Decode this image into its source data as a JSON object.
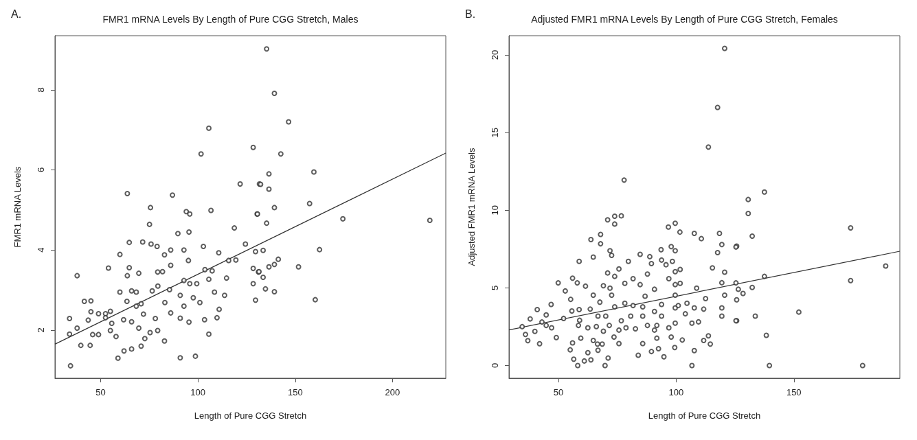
{
  "chart_data": [
    {
      "type": "scatter",
      "title": "FMR1 mRNA Levels By Length of Pure CGG Stretch, Males",
      "xlabel": "Length of Pure CGG Stretch",
      "ylabel": "FMR1 mRNA Levels",
      "annotations": [
        "A."
      ],
      "grid": false,
      "xlim": [
        26.5,
        227.4
      ],
      "ylim": [
        0.8,
        9.35
      ],
      "xticks": [
        50,
        100,
        150,
        200
      ],
      "yticks": [
        2,
        4,
        6,
        8
      ],
      "series": [
        {
          "color": "#333333",
          "marker": "circle",
          "x": [
            34.5,
            34.0,
            34.0,
            37.9,
            37.9,
            39.8,
            44.6,
            41.6,
            45.0,
            45.0,
            43.6,
            45.9,
            48.9,
            48.9,
            52.5,
            52.5,
            55.0,
            55.7,
            55.0,
            57.9,
            54.0,
            59.9,
            58.9,
            62.0,
            65.9,
            70.8,
            61.8,
            63.7,
            64.7,
            64.7,
            63.7,
            59.9,
            63.5,
            65.9,
            68.3,
            69.6,
            68.3,
            65.9,
            69.6,
            70.8,
            72.0,
            72.7,
            71.6,
            75.1,
            75.6,
            75.9,
            79.0,
            76.5,
            79.3,
            79.4,
            78.1,
            75.4,
            79.3,
            82.8,
            82.8,
            86.0,
            86.9,
            81.8,
            86.0,
            85.4,
            83.0,
            86.0,
            89.7,
            90.9,
            90.9,
            90.9,
            92.8,
            92.8,
            92.8,
            95.4,
            94.0,
            95.8,
            95.1,
            95.8,
            95.4,
            98.7,
            97.6,
            99.4,
            101.0,
            101.6,
            102.8,
            103.6,
            103.4,
            105.6,
            105.6,
            105.6,
            106.7,
            107.3,
            108.5,
            109.8,
            110.7,
            110.9,
            113.7,
            114.7,
            115.8,
            118.7,
            119.5,
            121.7,
            124.4,
            128.4,
            129.6,
            128.4,
            128.4,
            129.6,
            130.4,
            131.6,
            131.1,
            135.3,
            139.3,
            146.6,
            142.6,
            136.5,
            132.2,
            136.5,
            159.6,
            130.6,
            139.3,
            135.3,
            157.4,
            174.5,
            219.2,
            133.5,
            162.5,
            141.3,
            139.3,
            136.5,
            131.4,
            133.5,
            151.7,
            134.7,
            139.3,
            160.3
          ],
          "values": [
            1.11,
            2.29,
            1.9,
            2.05,
            3.36,
            1.62,
            1.62,
            2.72,
            2.73,
            2.46,
            2.25,
            1.89,
            1.89,
            2.41,
            2.41,
            2.31,
            2.47,
            2.17,
            1.99,
            1.84,
            3.55,
            3.89,
            1.3,
            1.48,
            1.53,
            1.6,
            2.26,
            3.36,
            3.56,
            4.19,
            5.41,
            2.95,
            2.72,
            2.98,
            2.95,
            3.42,
            2.6,
            2.21,
            2.05,
            2.66,
            2.4,
            1.79,
            4.2,
            4.64,
            5.06,
            4.15,
            4.09,
            2.98,
            3.45,
            3.1,
            2.29,
            1.94,
            1.99,
            1.73,
            3.88,
            4.0,
            5.37,
            3.46,
            3.62,
            3.01,
            2.69,
            2.43,
            4.41,
            2.87,
            2.3,
            1.31,
            4.0,
            3.24,
            2.6,
            4.45,
            4.96,
            4.9,
            3.74,
            3.16,
            2.2,
            1.35,
            2.81,
            3.16,
            2.69,
            6.4,
            4.09,
            3.51,
            2.26,
            7.04,
            3.27,
            1.9,
            4.99,
            3.48,
            2.95,
            2.31,
            3.93,
            2.52,
            2.87,
            3.3,
            3.74,
            4.55,
            3.75,
            5.65,
            4.15,
            6.56,
            3.96,
            3.54,
            3.16,
            2.75,
            4.9,
            5.65,
            3.45,
            9.02,
            7.91,
            7.2,
            6.4,
            5.9,
            5.64,
            5.52,
            5.95,
            4.9,
            5.06,
            4.67,
            5.16,
            4.78,
            4.74,
            3.99,
            4.01,
            3.77,
            3.64,
            3.58,
            3.46,
            3.32,
            3.58,
            3.03,
            2.96,
            2.76
          ]
        },
        {
          "type": "line",
          "marker": "none",
          "color": "#333333",
          "x": [
            26.5,
            227.4
          ],
          "values": [
            1.65,
            6.42
          ]
        }
      ]
    },
    {
      "type": "scatter",
      "title": "Adjusted FMR1 mRNA Levels By Length of Pure CGG Stretch, Females",
      "xlabel": "Length of Pure CGG Stretch",
      "ylabel": "Adjusted FMR1 mRNA Levels",
      "annotations": [
        "B."
      ],
      "grid": false,
      "xlim": [
        29,
        195
      ],
      "ylim": [
        -0.82,
        21.24
      ],
      "xticks": [
        50,
        100,
        150
      ],
      "yticks": [
        0,
        5,
        10,
        15,
        20
      ],
      "series": [
        {
          "color": "#333333",
          "marker": "circle",
          "x": [
            137.5,
            130.6,
            130.6,
            132.3,
            174.1,
            189.0,
            174.1,
            137.5,
            132.3,
            128.4,
            126.4,
            133.6,
            152.1,
            138.3,
            139.6,
            179.2,
            125.7,
            125.7,
            125.7,
            120.6,
            117.6,
            113.7,
            77.9,
            70.9,
            73.9,
            76.7,
            73.9,
            63.8,
            67.9,
            67.9,
            58.8,
            64.8,
            71.9,
            72.6,
            79.7,
            84.7,
            96.7,
            99.6,
            101.6,
            107.7,
            110.7,
            118.4,
            119.4,
            117.6,
            125.4,
            115.4,
            120.6,
            119.4,
            120.6,
            125.4,
            119.4,
            119.4,
            125.4,
            114.5,
            111.7,
            107.7,
            106.7,
            102.6,
            99.4,
            94.8,
            92.5,
            89.5,
            85.8,
            83.9,
            97.9,
            91.8,
            71.1,
            69.8,
            63.8,
            61.0,
            58.2,
            56.5,
            55.0,
            56.0,
            62.5,
            66.8,
            68.6,
            75.7,
            64.8,
            59.5,
            49.1,
            47.1,
            44.8,
            44.8,
            46.9,
            49.9,
            52.9,
            55.2,
            55.7,
            58.8,
            59.0,
            58.0,
            61.5,
            56.0,
            64.8,
            63.5,
            66.8,
            67.6,
            69.1,
            71.9,
            70.9,
            73.9,
            75.7,
            73.9,
            72.6,
            71.6,
            73.6,
            76.7,
            78.2,
            78.2,
            81.7,
            84.7,
            81.7,
            80.7,
            78.7,
            85.8,
            86.8,
            87.8,
            88.8,
            89.5,
            87.8,
            85.8,
            90.8,
            90.8,
            91.8,
            93.6,
            93.8,
            93.8,
            93.8,
            95.7,
            96.9,
            97.9,
            98.4,
            99.6,
            99.6,
            99.6,
            99.6,
            99.6,
            99.6,
            100.9,
            101.7,
            101.7,
            103.9,
            104.6,
            106.7,
            107.7,
            108.7,
            109.5,
            111.7,
            112.5,
            113.7,
            70.1,
            52.2,
            58.5,
            62.5,
            66.1,
            69.1,
            75.7,
            82.7,
            90.8,
            96.9,
            66.6,
            34.6,
            36.0,
            37.0,
            38.0,
            40.0,
            41.0,
            42.0,
            43.0
          ],
          "values": [
            11.17,
            10.69,
            9.79,
            8.33,
            8.86,
            6.41,
            5.47,
            5.74,
            5.03,
            4.64,
            4.91,
            3.18,
            3.44,
            1.94,
            0,
            0,
            7.69,
            4.23,
            2.88,
            20.42,
            16.62,
            14.07,
            11.94,
            9.38,
            9.61,
            9.64,
            9.11,
            8.11,
            8.44,
            7.84,
            6.71,
            6.98,
            7.39,
            7.09,
            6.71,
            7.16,
            8.92,
            9.16,
            8.59,
            8.51,
            8.17,
            8.51,
            7.79,
            7.27,
            7.63,
            6.29,
            6.01,
            5.33,
            4.53,
            5.32,
            3.71,
            3.18,
            2.88,
            1.38,
            1.61,
            0.96,
            0,
            1.64,
            1.16,
            0.56,
            1.08,
            0.9,
            1.41,
            0.66,
            1.83,
            1.76,
            0.48,
            0,
            0.36,
            0.29,
            0,
            0.41,
            1.01,
            1.46,
            0.83,
            0.98,
            1.38,
            1.41,
            1.61,
            1.76,
            1.8,
            2.43,
            2.58,
            3.26,
            3.93,
            5.32,
            4.8,
            4.26,
            3.51,
            3.6,
            2.91,
            5.32,
            5.11,
            5.62,
            4.53,
            3.63,
            3.18,
            4.08,
            5.14,
            4.98,
            5.96,
            5.74,
            6.22,
            3.78,
            4.53,
            2.58,
            1.83,
            2.88,
            4.01,
            5.29,
            5.59,
            5.21,
            3.86,
            3.18,
            2.43,
            3.78,
            4.46,
            5.89,
            7.01,
            6.56,
            2.58,
            3.18,
            4.91,
            3.48,
            2.58,
            7.46,
            6.79,
            3.93,
            3.18,
            6.49,
            5.59,
            7.66,
            6.71,
            6.04,
            5.21,
            4.53,
            3.71,
            2.73,
            7.39,
            3.86,
            5.29,
            6.19,
            3.33,
            4.01,
            2.73,
            3.71,
            4.98,
            2.81,
            3.63,
            4.31,
            1.91,
            3.18,
            3.03,
            2.58,
            2.43,
            2.51,
            2.21,
            2.28,
            2.36,
            2.28,
            2.43,
            1.38,
            2.5,
            2.0,
            1.6,
            3.0,
            2.2,
            3.6,
            1.4,
            2.8
          ]
        },
        {
          "type": "line",
          "marker": "none",
          "color": "#333333",
          "x": [
            29,
            195
          ],
          "values": [
            2.29,
            7.36
          ]
        }
      ]
    }
  ]
}
